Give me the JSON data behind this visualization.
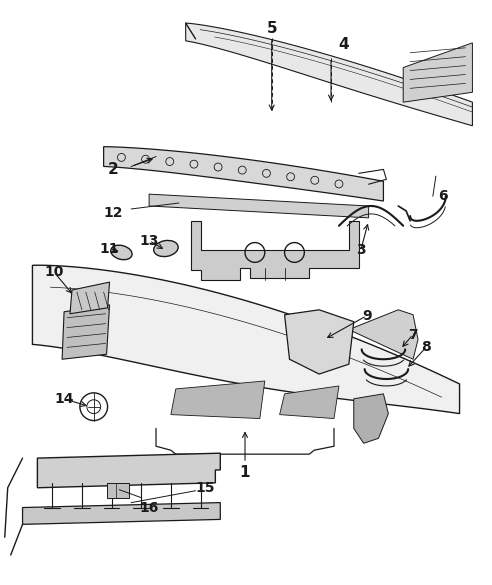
{
  "background_color": "#ffffff",
  "line_color": "#1a1a1a",
  "fig_width": 4.92,
  "fig_height": 5.85,
  "dpi": 100
}
